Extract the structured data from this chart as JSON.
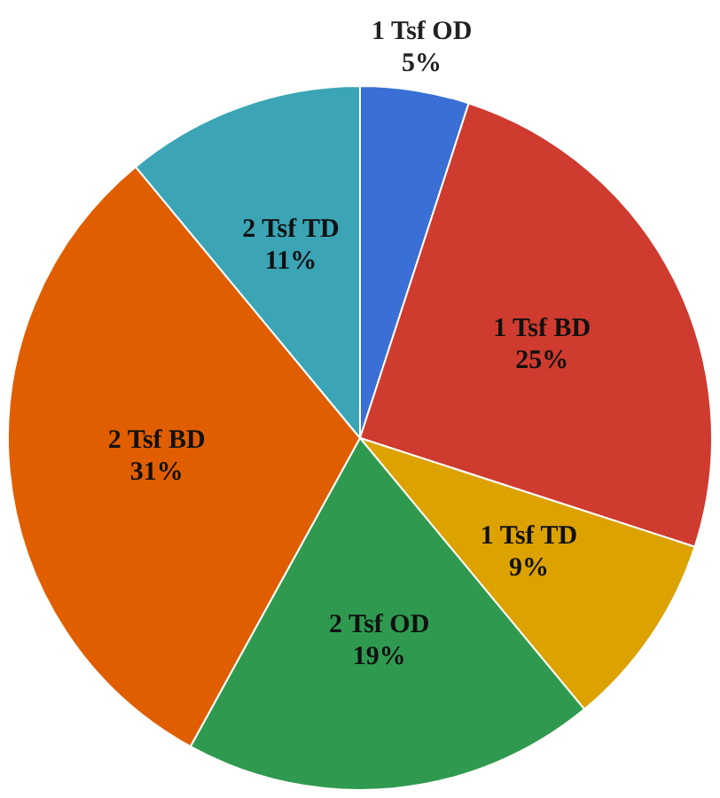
{
  "chart_data": {
    "type": "pie",
    "categories": [
      "1 Tsf OD",
      "1 Tsf BD",
      "1 Tsf TD",
      "2 Tsf OD",
      "2 Tsf BD",
      "2 Tsf TD"
    ],
    "values": [
      5,
      25,
      9,
      19,
      31,
      11
    ],
    "value_labels": [
      "5%",
      "25%",
      "9%",
      "19%",
      "31%",
      "11%"
    ],
    "colors": [
      "#3a6fd6",
      "#cf3b2e",
      "#dca200",
      "#2f9a4f",
      "#e05e00",
      "#3ba5b6"
    ],
    "legend": false
  }
}
